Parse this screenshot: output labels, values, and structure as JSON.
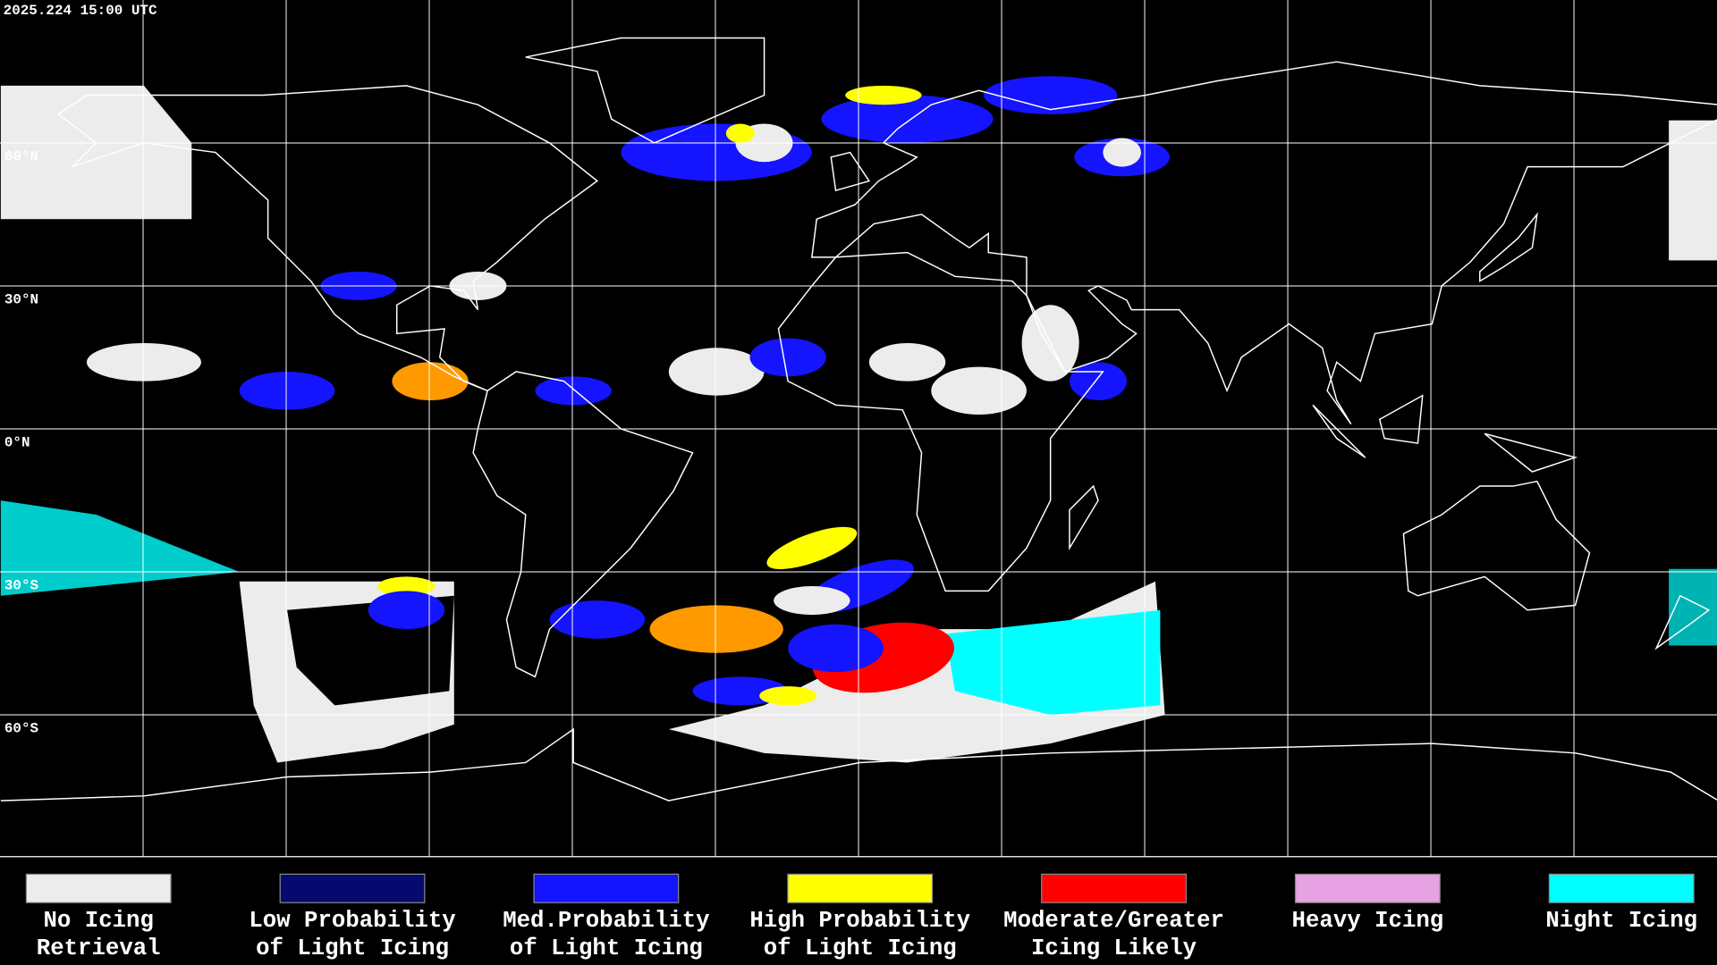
{
  "header": {
    "timestamp": "2025.224 15:00 UTC"
  },
  "map": {
    "latitude_labels": [
      "60°N",
      "30°N",
      "0°N",
      "30°S",
      "60°S"
    ]
  },
  "legend": {
    "items": [
      {
        "label_lines": [
          "No Icing",
          "Retrieval"
        ],
        "color": "#ececec"
      },
      {
        "label_lines": [
          "Low Probability",
          "of Light Icing"
        ],
        "color": "#060a6e"
      },
      {
        "label_lines": [
          "Med.Probability",
          "of Light Icing"
        ],
        "color": "#1414ff"
      },
      {
        "label_lines": [
          "High Probability",
          "of Light Icing"
        ],
        "color": "#ffff00"
      },
      {
        "label_lines": [
          "Moderate/Greater",
          "Icing Likely"
        ],
        "color": "#ff0000"
      },
      {
        "label_lines": [
          "Heavy Icing"
        ],
        "color": "#e6a2e2"
      },
      {
        "label_lines": [
          "Night Icing"
        ],
        "color": "#00ffff"
      }
    ]
  }
}
